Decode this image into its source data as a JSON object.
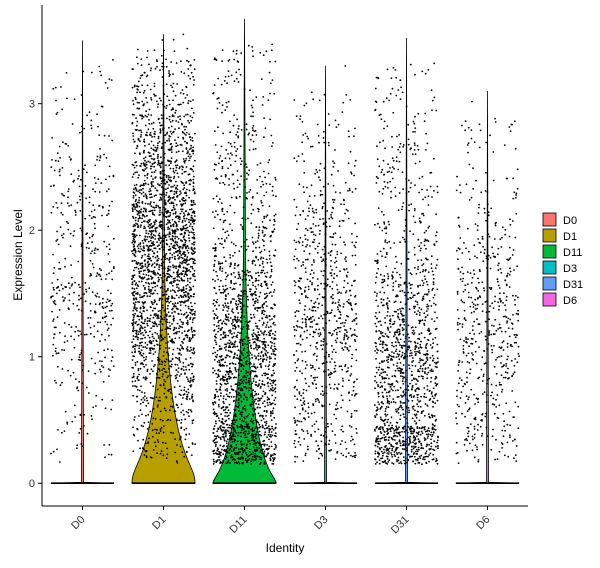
{
  "chart_data": {
    "type": "violin",
    "title": "",
    "xlabel": "Identity",
    "ylabel": "Expression Level",
    "ylim": [
      -0.18,
      3.78
    ],
    "yticks": [
      0,
      1,
      2,
      3
    ],
    "grid": false,
    "legend_position": "right",
    "jitter_points": true,
    "categories": [
      "D0",
      "D1",
      "D11",
      "D3",
      "D31",
      "D6"
    ],
    "colors": [
      "#F8766D",
      "#B79F00",
      "#00BA38",
      "#00BFC4",
      "#619CFF",
      "#F564E3"
    ],
    "series": [
      {
        "name": "D0",
        "max": 3.5,
        "zero_fraction": 0.92,
        "nonzero_points": 450,
        "nonzero_median": 1.6,
        "violin_width_at_zero": 0.02
      },
      {
        "name": "D1",
        "max": 3.55,
        "zero_fraction": 0.45,
        "nonzero_points": 2400,
        "nonzero_median": 1.8,
        "violin_width_at_zero": 1.0
      },
      {
        "name": "D11",
        "max": 3.67,
        "zero_fraction": 0.6,
        "nonzero_points": 1900,
        "nonzero_median": 0.9,
        "violin_width_at_zero": 1.0
      },
      {
        "name": "D3",
        "max": 3.3,
        "zero_fraction": 0.92,
        "nonzero_points": 800,
        "nonzero_median": 1.2,
        "violin_width_at_zero": 0.02
      },
      {
        "name": "D31",
        "max": 3.52,
        "zero_fraction": 0.9,
        "nonzero_points": 1400,
        "nonzero_median": 0.8,
        "violin_width_at_zero": 0.02
      },
      {
        "name": "D6",
        "max": 3.1,
        "zero_fraction": 0.93,
        "nonzero_points": 550,
        "nonzero_median": 1.2,
        "violin_width_at_zero": 0.02
      }
    ]
  }
}
